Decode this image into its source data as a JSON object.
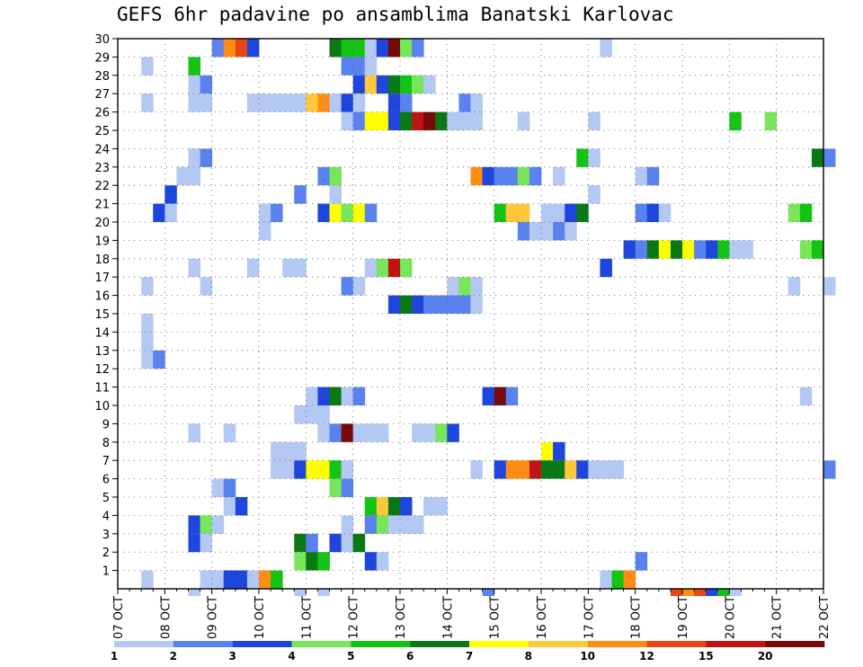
{
  "chart_data": {
    "type": "heatmap",
    "title": "GEFS 6hr padavine po ansamblima Banatski Karlovac",
    "x_ticks": [
      "07 OCT",
      "08 OCT",
      "09 OCT",
      "10 OCT",
      "11 OCT",
      "12 OCT",
      "13 OCT",
      "14 OCT",
      "15 OCT",
      "16 OCT",
      "17 OCT",
      "18 OCT",
      "19 OCT",
      "20 OCT",
      "21 OCT",
      "22 OCT"
    ],
    "y_ticks": [
      "1",
      "2",
      "3",
      "4",
      "5",
      "6",
      "7",
      "8",
      "9",
      "10",
      "11",
      "12",
      "13",
      "14",
      "15",
      "16",
      "17",
      "18",
      "19",
      "20",
      "21",
      "22",
      "23",
      "24",
      "25",
      "26",
      "27",
      "28",
      "29",
      "30"
    ],
    "grid": true,
    "colorbar": {
      "labels": [
        "1",
        "2",
        "3",
        "4",
        "5",
        "6",
        "7",
        "8",
        "10",
        "12",
        "15",
        "20"
      ],
      "colors": [
        "#b4c8f4",
        "#5a82ee",
        "#1e46dc",
        "#78e65a",
        "#14c314",
        "#0a7814",
        "#ffff00",
        "#ffc83c",
        "#ff8c14",
        "#e64614",
        "#be1414",
        "#780a0a"
      ]
    },
    "cells": [
      {
        "m": 30,
        "s": [
          [
            8,
            2
          ],
          [
            9,
            9
          ],
          [
            10,
            10
          ],
          [
            11,
            3
          ],
          [
            18,
            6
          ],
          [
            19,
            5
          ],
          [
            20,
            5
          ],
          [
            21,
            1
          ],
          [
            22,
            3
          ],
          [
            23,
            12
          ],
          [
            24,
            4
          ],
          [
            25,
            2
          ],
          [
            41,
            1
          ]
        ]
      },
      {
        "m": 29,
        "s": [
          [
            2,
            1
          ],
          [
            6,
            5
          ],
          [
            19,
            2
          ],
          [
            20,
            2
          ],
          [
            21,
            1
          ]
        ]
      },
      {
        "m": 28,
        "s": [
          [
            6,
            1
          ],
          [
            7,
            2
          ],
          [
            20,
            3
          ],
          [
            21,
            8
          ],
          [
            22,
            3
          ],
          [
            23,
            6
          ],
          [
            24,
            5
          ],
          [
            25,
            4
          ],
          [
            26,
            1
          ]
        ]
      },
      {
        "m": 27,
        "s": [
          [
            2,
            1
          ],
          [
            6,
            1
          ],
          [
            7,
            1
          ],
          [
            11,
            1
          ],
          [
            12,
            1
          ],
          [
            13,
            1
          ],
          [
            14,
            1
          ],
          [
            15,
            1
          ],
          [
            16,
            8
          ],
          [
            17,
            9
          ],
          [
            18,
            1
          ],
          [
            19,
            3
          ],
          [
            20,
            1
          ],
          [
            23,
            3
          ],
          [
            24,
            2
          ],
          [
            29,
            2
          ],
          [
            30,
            1
          ]
        ]
      },
      {
        "m": 26,
        "s": [
          [
            19,
            1
          ],
          [
            20,
            2
          ],
          [
            21,
            7
          ],
          [
            22,
            7
          ],
          [
            23,
            3
          ],
          [
            24,
            6
          ],
          [
            25,
            11
          ],
          [
            26,
            12
          ],
          [
            27,
            6
          ],
          [
            28,
            1
          ],
          [
            29,
            1
          ],
          [
            30,
            1
          ],
          [
            34,
            1
          ],
          [
            40,
            1
          ],
          [
            52,
            5
          ],
          [
            55,
            4
          ]
        ]
      },
      {
        "m": 24,
        "s": [
          [
            6,
            1
          ],
          [
            7,
            2
          ],
          [
            39,
            5
          ],
          [
            40,
            1
          ],
          [
            59,
            6
          ],
          [
            60,
            2
          ]
        ]
      },
      {
        "m": 23,
        "s": [
          [
            5,
            1
          ],
          [
            6,
            1
          ],
          [
            17,
            2
          ],
          [
            18,
            4
          ],
          [
            30,
            9
          ],
          [
            31,
            3
          ],
          [
            32,
            2
          ],
          [
            33,
            2
          ],
          [
            34,
            4
          ],
          [
            35,
            2
          ],
          [
            37,
            1
          ],
          [
            44,
            1
          ],
          [
            45,
            2
          ]
        ]
      },
      {
        "m": 22,
        "s": [
          [
            4,
            3
          ],
          [
            15,
            2
          ],
          [
            18,
            1
          ],
          [
            40,
            1
          ]
        ]
      },
      {
        "m": 21,
        "s": [
          [
            3,
            3
          ],
          [
            4,
            1
          ],
          [
            12,
            1
          ],
          [
            13,
            2
          ],
          [
            17,
            3
          ],
          [
            18,
            7
          ],
          [
            19,
            4
          ],
          [
            20,
            7
          ],
          [
            21,
            2
          ],
          [
            32,
            5
          ],
          [
            33,
            8
          ],
          [
            34,
            8
          ],
          [
            36,
            1
          ],
          [
            37,
            1
          ],
          [
            38,
            3
          ],
          [
            39,
            6
          ],
          [
            44,
            2
          ],
          [
            45,
            3
          ],
          [
            46,
            1
          ],
          [
            57,
            4
          ],
          [
            58,
            5
          ]
        ]
      },
      {
        "m": 20,
        "s": [
          [
            12,
            1
          ],
          [
            34,
            2
          ],
          [
            35,
            1
          ],
          [
            36,
            1
          ],
          [
            37,
            2
          ],
          [
            38,
            1
          ]
        ]
      },
      {
        "m": 19,
        "s": [
          [
            43,
            3
          ],
          [
            44,
            2
          ],
          [
            45,
            6
          ],
          [
            46,
            7
          ],
          [
            47,
            6
          ],
          [
            48,
            7
          ],
          [
            49,
            2
          ],
          [
            50,
            3
          ],
          [
            51,
            5
          ],
          [
            52,
            1
          ],
          [
            53,
            1
          ],
          [
            58,
            4
          ],
          [
            59,
            5
          ]
        ]
      },
      {
        "m": 18,
        "s": [
          [
            6,
            1
          ],
          [
            11,
            1
          ],
          [
            14,
            1
          ],
          [
            15,
            1
          ],
          [
            21,
            1
          ],
          [
            22,
            4
          ],
          [
            23,
            11
          ],
          [
            24,
            4
          ],
          [
            41,
            3
          ]
        ]
      },
      {
        "m": 17,
        "s": [
          [
            2,
            1
          ],
          [
            7,
            1
          ],
          [
            19,
            2
          ],
          [
            20,
            1
          ],
          [
            28,
            1
          ],
          [
            29,
            4
          ],
          [
            30,
            1
          ],
          [
            57,
            1
          ],
          [
            60,
            1
          ]
        ]
      },
      {
        "m": 16,
        "s": [
          [
            23,
            3
          ],
          [
            24,
            6
          ],
          [
            25,
            3
          ],
          [
            26,
            2
          ],
          [
            27,
            2
          ],
          [
            28,
            2
          ],
          [
            29,
            2
          ],
          [
            30,
            1
          ]
        ]
      },
      {
        "m": 15,
        "s": [
          [
            2,
            1
          ]
        ]
      },
      {
        "m": 14,
        "s": [
          [
            2,
            1
          ]
        ]
      },
      {
        "m": 13,
        "s": [
          [
            2,
            1
          ],
          [
            3,
            2
          ]
        ]
      },
      {
        "m": 11,
        "s": [
          [
            16,
            1
          ],
          [
            17,
            3
          ],
          [
            18,
            6
          ],
          [
            19,
            1
          ],
          [
            20,
            2
          ],
          [
            31,
            3
          ],
          [
            32,
            12
          ],
          [
            33,
            2
          ],
          [
            58,
            1
          ]
        ]
      },
      {
        "m": 10,
        "s": [
          [
            15,
            1
          ],
          [
            16,
            1
          ],
          [
            17,
            1
          ]
        ]
      },
      {
        "m": 9,
        "s": [
          [
            6,
            1
          ],
          [
            9,
            1
          ],
          [
            17,
            1
          ],
          [
            18,
            2
          ],
          [
            19,
            12
          ],
          [
            20,
            1
          ],
          [
            21,
            1
          ],
          [
            22,
            1
          ],
          [
            25,
            1
          ],
          [
            26,
            1
          ],
          [
            27,
            4
          ],
          [
            28,
            3
          ]
        ]
      },
      {
        "m": 8,
        "s": [
          [
            13,
            1
          ],
          [
            14,
            1
          ],
          [
            15,
            1
          ],
          [
            36,
            7
          ],
          [
            37,
            3
          ]
        ]
      },
      {
        "m": 7,
        "s": [
          [
            13,
            1
          ],
          [
            14,
            1
          ],
          [
            15,
            3
          ],
          [
            16,
            7
          ],
          [
            17,
            7
          ],
          [
            18,
            5
          ],
          [
            19,
            1
          ],
          [
            30,
            1
          ],
          [
            32,
            3
          ],
          [
            33,
            9
          ],
          [
            34,
            9
          ],
          [
            35,
            11
          ],
          [
            36,
            6
          ],
          [
            37,
            6
          ],
          [
            38,
            8
          ],
          [
            39,
            3
          ],
          [
            40,
            1
          ],
          [
            41,
            1
          ],
          [
            42,
            1
          ],
          [
            60,
            2
          ]
        ]
      },
      {
        "m": 6,
        "s": [
          [
            8,
            1
          ],
          [
            9,
            2
          ],
          [
            18,
            4
          ],
          [
            19,
            2
          ]
        ]
      },
      {
        "m": 5,
        "s": [
          [
            9,
            1
          ],
          [
            10,
            3
          ],
          [
            21,
            5
          ],
          [
            22,
            8
          ],
          [
            23,
            6
          ],
          [
            24,
            3
          ],
          [
            26,
            1
          ],
          [
            27,
            1
          ]
        ]
      },
      {
        "m": 4,
        "s": [
          [
            6,
            3
          ],
          [
            7,
            4
          ],
          [
            8,
            1
          ],
          [
            19,
            1
          ],
          [
            21,
            2
          ],
          [
            22,
            4
          ],
          [
            23,
            1
          ],
          [
            24,
            1
          ],
          [
            25,
            1
          ]
        ]
      },
      {
        "m": 3,
        "s": [
          [
            6,
            3
          ],
          [
            7,
            1
          ],
          [
            15,
            6
          ],
          [
            16,
            2
          ],
          [
            18,
            3
          ],
          [
            19,
            1
          ],
          [
            20,
            6
          ]
        ]
      },
      {
        "m": 2,
        "s": [
          [
            15,
            4
          ],
          [
            16,
            6
          ],
          [
            17,
            5
          ],
          [
            21,
            3
          ],
          [
            22,
            1
          ],
          [
            44,
            2
          ]
        ]
      },
      {
        "m": 1,
        "s": [
          [
            2,
            1
          ],
          [
            7,
            1
          ],
          [
            8,
            1
          ],
          [
            9,
            3
          ],
          [
            10,
            3
          ],
          [
            11,
            1
          ],
          [
            12,
            9
          ],
          [
            13,
            5
          ],
          [
            41,
            1
          ],
          [
            42,
            5
          ],
          [
            43,
            9
          ]
        ]
      },
      {
        "m": 0,
        "s": [
          [
            6,
            1
          ],
          [
            15,
            1
          ],
          [
            17,
            1
          ],
          [
            31,
            2
          ],
          [
            47,
            10
          ],
          [
            48,
            9
          ],
          [
            49,
            10
          ],
          [
            50,
            3
          ],
          [
            51,
            5
          ],
          [
            52,
            1
          ]
        ]
      }
    ]
  }
}
